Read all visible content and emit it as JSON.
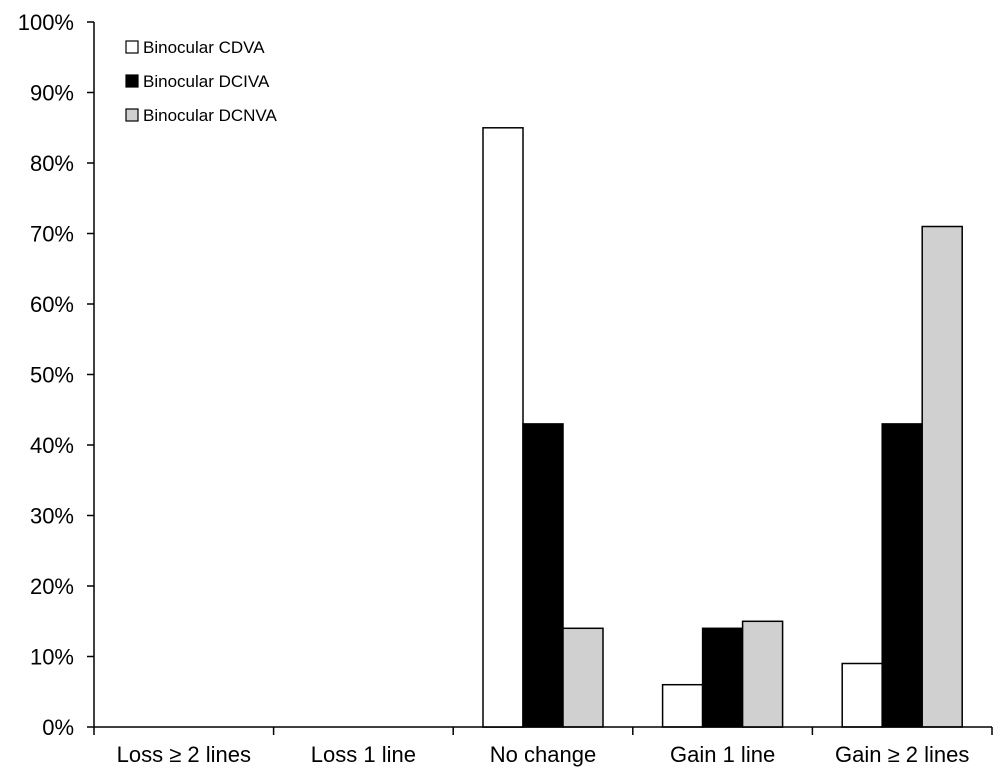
{
  "chart_data": {
    "type": "bar",
    "title": "",
    "xlabel": "",
    "ylabel": "",
    "categories": [
      "Loss ≥ 2 lines",
      "Loss 1 line",
      "No change",
      "Gain 1 line",
      "Gain ≥ 2 lines"
    ],
    "series": [
      {
        "name": "Binocular CDVA",
        "values": [
          0,
          0,
          85,
          6,
          9
        ],
        "color": "#ffffff"
      },
      {
        "name": "Binocular DCIVA",
        "values": [
          0,
          0,
          43,
          14,
          43
        ],
        "color": "#000000"
      },
      {
        "name": "Binocular DCNVA",
        "values": [
          0,
          0,
          14,
          15,
          71
        ],
        "color": "#d0d0d0"
      }
    ],
    "ylim": [
      0,
      100
    ],
    "yticks": [
      0,
      10,
      20,
      30,
      40,
      50,
      60,
      70,
      80,
      90,
      100
    ],
    "ytick_labels": [
      "0%",
      "10%",
      "20%",
      "30%",
      "40%",
      "50%",
      "60%",
      "70%",
      "80%",
      "90%",
      "100%"
    ],
    "grid": false,
    "legend_position": "top-left",
    "bar_stroke_color": "#000000"
  }
}
